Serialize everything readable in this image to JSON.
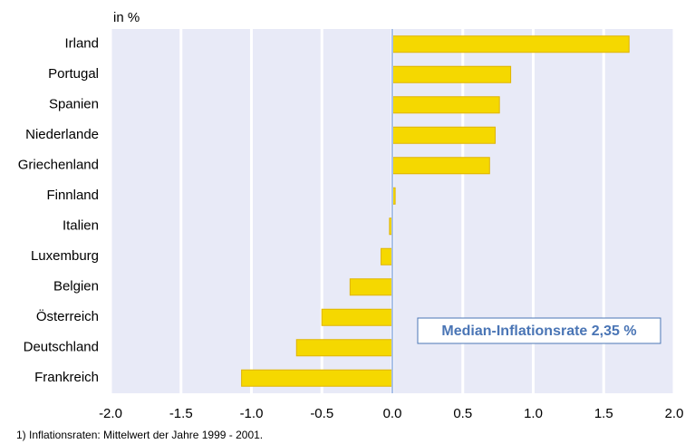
{
  "chart_data": {
    "type": "barh",
    "y_label": "in %",
    "categories": [
      "Irland",
      "Portugal",
      "Spanien",
      "Niederlande",
      "Griechenland",
      "Finnland",
      "Italien",
      "Luxemburg",
      "Belgien",
      "Österreich",
      "Deutschland",
      "Frankreich"
    ],
    "values": [
      1.68,
      0.84,
      0.76,
      0.73,
      0.69,
      0.02,
      -0.02,
      -0.08,
      -0.3,
      -0.5,
      -0.68,
      -1.07
    ],
    "color": "#f5d800",
    "xlim": [
      -2.0,
      2.0
    ],
    "xticks": [
      {
        "value": -2.0,
        "label": "-2.0"
      },
      -1.5,
      {
        "value": -1.0,
        "label": "-1.0"
      },
      -0.5,
      {
        "value": 0,
        "label": "0.0"
      },
      0.5,
      {
        "value": 1.0,
        "label": "1.0"
      },
      1.5,
      {
        "value": 2.0,
        "label": "2.0"
      }
    ],
    "grid": true,
    "annotation": "Median-Inflationsrate 2,35 %",
    "footnote": "1) Inflationsraten: Mittelwert der Jahre 1999 - 2001."
  }
}
